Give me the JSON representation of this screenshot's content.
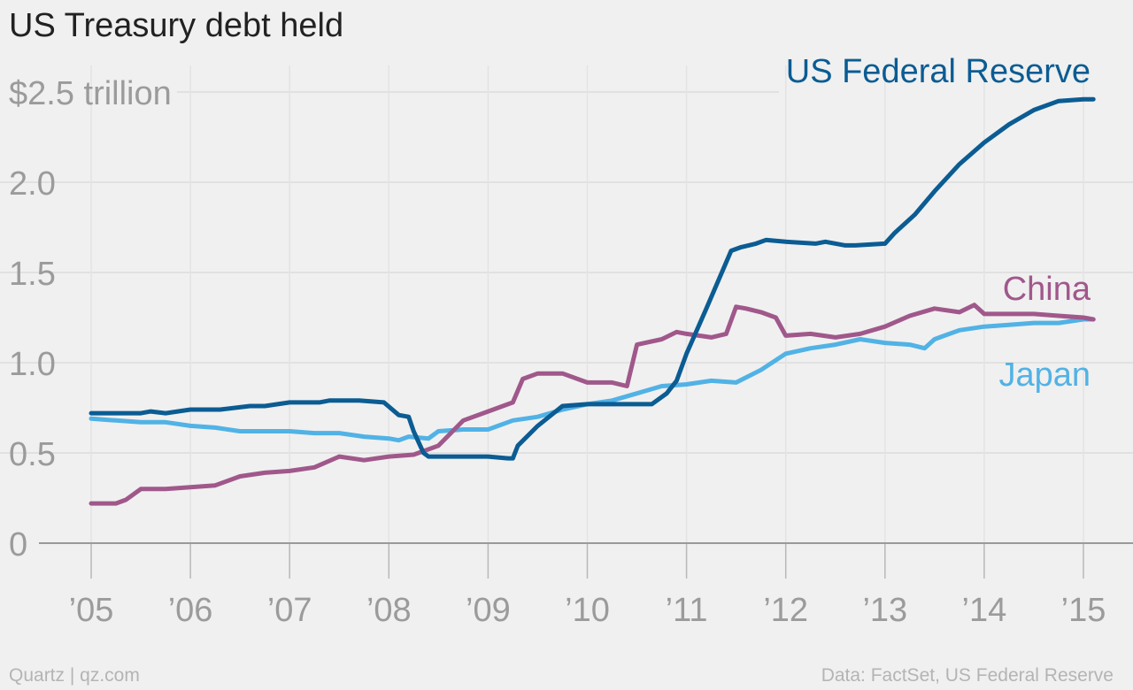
{
  "chart_data": {
    "type": "line",
    "title": "US Treasury debt held",
    "y_top_label": "$2.5 trillion",
    "ylim": [
      0,
      2.5
    ],
    "y_ticks": [
      {
        "value": 0,
        "label": "0"
      },
      {
        "value": 0.5,
        "label": "0.5"
      },
      {
        "value": 1.0,
        "label": "1.0"
      },
      {
        "value": 1.5,
        "label": "1.5"
      },
      {
        "value": 2.0,
        "label": "2.0"
      }
    ],
    "xlim": [
      2005,
      2015.2
    ],
    "x_ticks": [
      {
        "value": 2005,
        "label": "’05"
      },
      {
        "value": 2006,
        "label": "’06"
      },
      {
        "value": 2007,
        "label": "’07"
      },
      {
        "value": 2008,
        "label": "’08"
      },
      {
        "value": 2009,
        "label": "’09"
      },
      {
        "value": 2010,
        "label": "’10"
      },
      {
        "value": 2011,
        "label": "’11"
      },
      {
        "value": 2012,
        "label": "’12"
      },
      {
        "value": 2013,
        "label": "’13"
      },
      {
        "value": 2014,
        "label": "’14"
      },
      {
        "value": 2015,
        "label": "’15"
      }
    ],
    "grid": true,
    "series": [
      {
        "name": "US Federal Reserve",
        "color": "#0b5c93",
        "x": [
          2005.0,
          2005.5,
          2005.6,
          2005.75,
          2006.0,
          2006.3,
          2006.6,
          2006.75,
          2007.0,
          2007.3,
          2007.4,
          2007.7,
          2007.95,
          2008.1,
          2008.2,
          2008.25,
          2008.3,
          2008.35,
          2008.4,
          2008.5,
          2008.75,
          2009.0,
          2009.2,
          2009.25,
          2009.3,
          2009.5,
          2009.75,
          2010.0,
          2010.5,
          2010.65,
          2010.8,
          2010.9,
          2011.0,
          2011.2,
          2011.45,
          2011.55,
          2011.7,
          2011.8,
          2012.0,
          2012.3,
          2012.4,
          2012.6,
          2012.7,
          2013.0,
          2013.1,
          2013.3,
          2013.5,
          2013.75,
          2014.0,
          2014.25,
          2014.5,
          2014.75,
          2015.0,
          2015.1
        ],
        "values": [
          0.72,
          0.72,
          0.73,
          0.72,
          0.74,
          0.74,
          0.76,
          0.76,
          0.78,
          0.78,
          0.79,
          0.79,
          0.78,
          0.71,
          0.7,
          0.62,
          0.56,
          0.5,
          0.48,
          0.48,
          0.48,
          0.48,
          0.47,
          0.47,
          0.54,
          0.65,
          0.76,
          0.77,
          0.77,
          0.77,
          0.83,
          0.9,
          1.05,
          1.3,
          1.62,
          1.64,
          1.66,
          1.68,
          1.67,
          1.66,
          1.67,
          1.65,
          1.65,
          1.66,
          1.72,
          1.82,
          1.95,
          2.1,
          2.22,
          2.32,
          2.4,
          2.45,
          2.46,
          2.46
        ]
      },
      {
        "name": "China",
        "color": "#a0588b",
        "x": [
          2005.0,
          2005.25,
          2005.35,
          2005.5,
          2005.75,
          2006.0,
          2006.25,
          2006.5,
          2006.75,
          2007.0,
          2007.25,
          2007.5,
          2007.75,
          2008.0,
          2008.25,
          2008.5,
          2008.75,
          2009.0,
          2009.25,
          2009.35,
          2009.5,
          2009.75,
          2010.0,
          2010.25,
          2010.4,
          2010.5,
          2010.75,
          2010.9,
          2011.0,
          2011.25,
          2011.4,
          2011.5,
          2011.6,
          2011.75,
          2011.9,
          2012.0,
          2012.25,
          2012.5,
          2012.75,
          2013.0,
          2013.25,
          2013.5,
          2013.75,
          2013.9,
          2014.0,
          2014.25,
          2014.5,
          2014.75,
          2015.0,
          2015.1
        ],
        "values": [
          0.22,
          0.22,
          0.24,
          0.3,
          0.3,
          0.31,
          0.32,
          0.37,
          0.39,
          0.4,
          0.42,
          0.48,
          0.46,
          0.48,
          0.49,
          0.54,
          0.68,
          0.73,
          0.78,
          0.91,
          0.94,
          0.94,
          0.89,
          0.89,
          0.87,
          1.1,
          1.13,
          1.17,
          1.16,
          1.14,
          1.16,
          1.31,
          1.3,
          1.28,
          1.25,
          1.15,
          1.16,
          1.14,
          1.16,
          1.2,
          1.26,
          1.3,
          1.28,
          1.32,
          1.27,
          1.27,
          1.27,
          1.26,
          1.25,
          1.24
        ]
      },
      {
        "name": "Japan",
        "color": "#51b2e5",
        "x": [
          2005.0,
          2005.25,
          2005.5,
          2005.75,
          2006.0,
          2006.25,
          2006.5,
          2006.75,
          2007.0,
          2007.25,
          2007.5,
          2007.75,
          2008.0,
          2008.1,
          2008.2,
          2008.4,
          2008.5,
          2008.75,
          2009.0,
          2009.25,
          2009.5,
          2009.75,
          2010.0,
          2010.25,
          2010.5,
          2010.75,
          2011.0,
          2011.25,
          2011.5,
          2011.75,
          2012.0,
          2012.25,
          2012.5,
          2012.75,
          2013.0,
          2013.25,
          2013.4,
          2013.5,
          2013.6,
          2013.75,
          2014.0,
          2014.25,
          2014.5,
          2014.75,
          2015.0,
          2015.1
        ],
        "values": [
          0.69,
          0.68,
          0.67,
          0.67,
          0.65,
          0.64,
          0.62,
          0.62,
          0.62,
          0.61,
          0.61,
          0.59,
          0.58,
          0.57,
          0.59,
          0.58,
          0.62,
          0.63,
          0.63,
          0.68,
          0.7,
          0.74,
          0.77,
          0.79,
          0.83,
          0.87,
          0.88,
          0.9,
          0.89,
          0.96,
          1.05,
          1.08,
          1.1,
          1.13,
          1.11,
          1.1,
          1.08,
          1.13,
          1.15,
          1.18,
          1.2,
          1.21,
          1.22,
          1.22,
          1.24,
          1.24
        ]
      }
    ]
  },
  "footer": {
    "source_left": "Quartz | qz.com",
    "source_right": "Data: FactSet, US Federal Reserve"
  }
}
